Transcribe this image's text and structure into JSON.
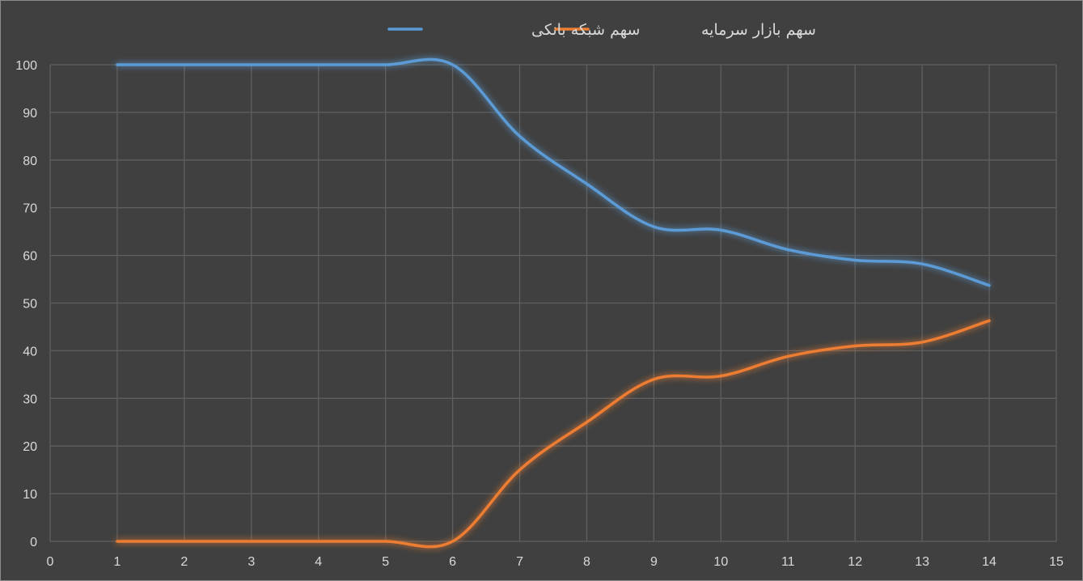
{
  "chart_data": {
    "type": "line",
    "smooth": true,
    "x": [
      1,
      2,
      3,
      4,
      5,
      6,
      7,
      8,
      9,
      10,
      11,
      12,
      13,
      14
    ],
    "series": [
      {
        "name": "سهم شبکه بانکی",
        "color": "#5b9bd5",
        "values": [
          100,
          100,
          100,
          100,
          100,
          100,
          85,
          75,
          66,
          65.3,
          61.2,
          59,
          58.2,
          53.7
        ]
      },
      {
        "name": "سهم بازار سرمایه",
        "color": "#ed7d31",
        "values": [
          0,
          0,
          0,
          0,
          0,
          0,
          15,
          25,
          34,
          34.7,
          38.8,
          41,
          41.8,
          46.3
        ]
      }
    ],
    "xlim": [
      0,
      15
    ],
    "ylim": [
      0,
      100
    ],
    "x_ticks": [
      "0",
      "1",
      "2",
      "3",
      "4",
      "5",
      "6",
      "7",
      "8",
      "9",
      "10",
      "11",
      "12",
      "13",
      "14",
      "15"
    ],
    "y_ticks": [
      "0",
      "10",
      "20",
      "30",
      "40",
      "50",
      "60",
      "70",
      "80",
      "90",
      "100"
    ],
    "grid": true,
    "legend_position": "top-center",
    "background": "#404040",
    "gridline_color": "#5f5f5f",
    "text_color": "#d9d9d9"
  }
}
